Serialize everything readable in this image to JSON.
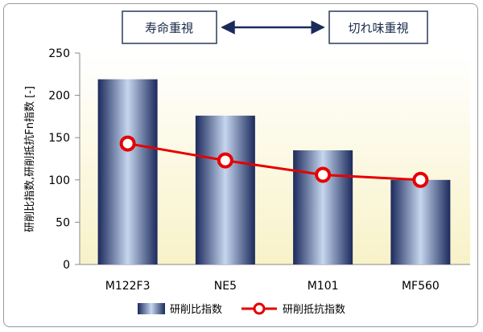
{
  "header": {
    "left_box": "寿命重視",
    "right_box": "切れ味重視"
  },
  "chart_data": {
    "type": "bar",
    "categories": [
      "M122F3",
      "NE5",
      "M101",
      "MF560"
    ],
    "series": [
      {
        "name": "研削比指数",
        "type": "bar",
        "values": [
          219,
          176,
          135,
          100
        ]
      },
      {
        "name": "研削抵抗指数",
        "type": "line",
        "values": [
          143,
          123,
          106,
          100
        ]
      }
    ],
    "ylabel": "研削比指数,研削抵抗Fn指数 [-]",
    "ylim": [
      0,
      250
    ],
    "yticks": [
      0,
      50,
      100,
      150,
      200,
      250
    ],
    "grid": false,
    "legend": "bottom",
    "colors": {
      "bar_dark": "#1b2a5c",
      "bar_light": "#c6d6ee",
      "line": "#e60000",
      "marker_fill": "#ffffff",
      "plot_bg_top": "#ffffff",
      "plot_bg_bottom": "#f8f2c8",
      "arrow": "#1a2a5a",
      "box_border": "#2a3a5a"
    }
  }
}
